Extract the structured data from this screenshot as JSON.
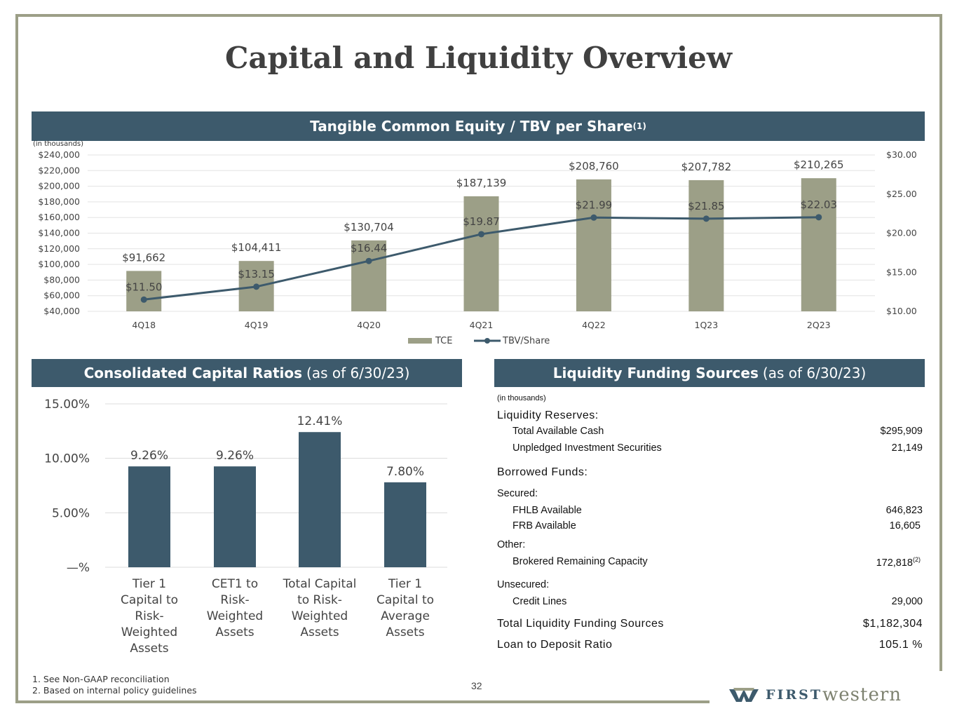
{
  "title": "Capital and Liquidity Overview",
  "top_panel": {
    "band_title": "Tangible Common Equity / TBV per Share",
    "band_sup": "(1)",
    "units_note": "(in thousands)"
  },
  "ratios_panel": {
    "band_title": "Consolidated Capital Ratios",
    "band_suffix": "(as of 6/30/23)"
  },
  "liquidity_panel": {
    "band_title": "Liquidity Funding Sources",
    "band_suffix": "(as of 6/30/23)",
    "units_note": "(in thousands)",
    "rows": [
      {
        "label": "Liquidity Reserves:",
        "value": "",
        "style": "head"
      },
      {
        "label": "Total Available Cash",
        "value": "$295,909",
        "style": "ind"
      },
      {
        "label": "Unpledged Investment Securities",
        "value": "21,149",
        "style": "ind"
      },
      {
        "label": "Borrowed Funds:",
        "value": "",
        "style": "head"
      },
      {
        "label": "Secured:",
        "value": "",
        "style": "plain"
      },
      {
        "label": "FHLB Available",
        "value": "646,823",
        "style": "ind"
      },
      {
        "label": "FRB Available",
        "value": "16,605",
        "style": "ind"
      },
      {
        "label": "Other:",
        "value": "",
        "style": "plain"
      },
      {
        "label": "Brokered Remaining Capacity",
        "value": "172,818",
        "sup": "(2)",
        "style": "ind"
      },
      {
        "label": "Unsecured:",
        "value": "",
        "style": "plain"
      },
      {
        "label": "Credit Lines",
        "value": "29,000",
        "style": "ind"
      },
      {
        "label": "Total Liquidity Funding Sources",
        "value": "$1,182,304",
        "style": "head"
      },
      {
        "label": "Loan to Deposit Ratio",
        "value": "105.1 %",
        "style": "head"
      }
    ]
  },
  "footnotes": [
    "1.  See Non-GAAP reconciliation",
    "2.  Based on internal policy guidelines"
  ],
  "page_number": "32",
  "logo": {
    "first": "FIRST",
    "western": "western"
  },
  "colors": {
    "band": "#3d5a6c",
    "tce_bar": "#9c9f87",
    "line": "#3d5a6c",
    "ratio_bar": "#3d5a6c",
    "frame": "#9c9f87"
  },
  "chart_data": [
    {
      "type": "bar",
      "categories": [
        "4Q18",
        "4Q19",
        "4Q20",
        "4Q21",
        "4Q22",
        "1Q23",
        "2Q23"
      ],
      "series": [
        {
          "name": "TCE",
          "type": "bar",
          "axis": "left",
          "values": [
            91662,
            104411,
            130704,
            187139,
            208760,
            207782,
            210265
          ],
          "labels": [
            "$91,662",
            "$104,411",
            "$130,704",
            "$187,139",
            "$208,760",
            "$207,782",
            "$210,265"
          ]
        },
        {
          "name": "TBV/Share",
          "type": "line",
          "axis": "right",
          "values": [
            11.5,
            13.15,
            16.44,
            19.87,
            21.99,
            21.85,
            22.03
          ],
          "labels": [
            "$11.50",
            "$13.15",
            "$16.44",
            "$19.87",
            "$21.99",
            "$21.85",
            "$22.03"
          ]
        }
      ],
      "ylim_left": [
        40000,
        240000
      ],
      "yticks_left": [
        "$40,000",
        "$60,000",
        "$80,000",
        "$100,000",
        "$120,000",
        "$140,000",
        "$160,000",
        "$180,000",
        "$200,000",
        "$220,000",
        "$240,000"
      ],
      "ylim_right": [
        10,
        30
      ],
      "yticks_right": [
        "$10.00",
        "$15.00",
        "$20.00",
        "$25.00",
        "$30.00"
      ],
      "legend": "bottom",
      "grid": true
    },
    {
      "type": "bar",
      "categories": [
        [
          "Tier 1",
          "Capital to",
          "Risk-",
          "Weighted",
          "Assets"
        ],
        [
          "CET1 to",
          "Risk-",
          "Weighted",
          "Assets"
        ],
        [
          "Total Capital",
          "to Risk-",
          "Weighted",
          "Assets"
        ],
        [
          "Tier 1",
          "Capital to",
          "Average",
          "Assets"
        ]
      ],
      "values": [
        9.26,
        9.26,
        12.41,
        7.8
      ],
      "labels": [
        "9.26%",
        "9.26%",
        "12.41%",
        "7.80%"
      ],
      "ylim": [
        0,
        15
      ],
      "yticks": [
        "—%",
        "5.00%",
        "10.00%",
        "15.00%"
      ],
      "grid": true
    }
  ]
}
